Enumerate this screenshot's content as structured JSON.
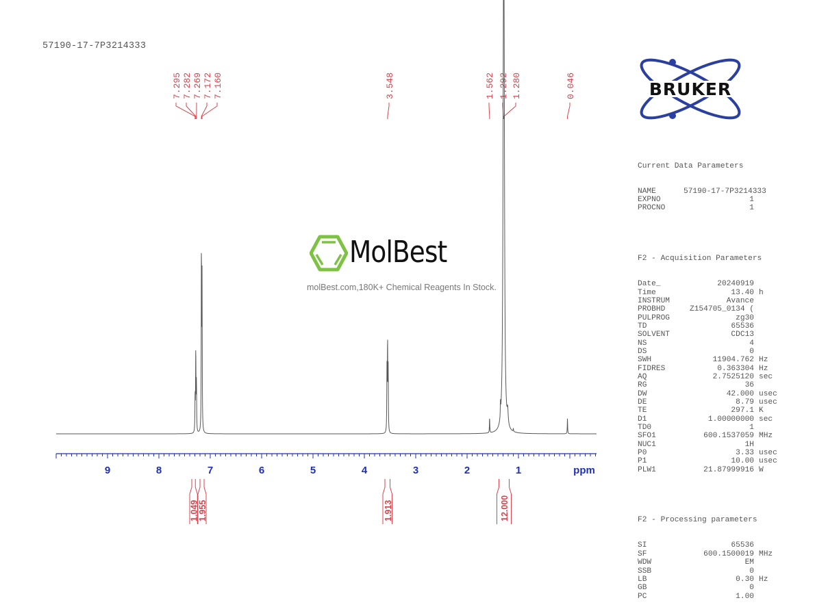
{
  "header": {
    "sample_name": "57190-17-7P3214333"
  },
  "logo": {
    "brand": "BRUKER",
    "brand_color": "#2b3f9e"
  },
  "watermark": {
    "name": "MolBest",
    "tagline": "molBest.com,180K+ Chemical Reagents In Stock.",
    "icon": "benzene-ring-icon",
    "icon_color": "#7dc242"
  },
  "parameters": {
    "current": {
      "title": "Current Data Parameters",
      "rows": [
        {
          "key": "NAME",
          "value": "57190-17-7P3214333",
          "unit": ""
        },
        {
          "key": "EXPNO",
          "value": "1",
          "unit": ""
        },
        {
          "key": "PROCNO",
          "value": "1",
          "unit": ""
        }
      ]
    },
    "acquisition": {
      "title": "F2 - Acquisition Parameters",
      "rows": [
        {
          "key": "Date_",
          "value": "20240919",
          "unit": ""
        },
        {
          "key": "Time",
          "value": "13.40",
          "unit": "h"
        },
        {
          "key": "INSTRUM",
          "value": "Avance",
          "unit": ""
        },
        {
          "key": "PROBHD",
          "value": "Z154705_0134 (",
          "unit": ""
        },
        {
          "key": "PULPROG",
          "value": "zg30",
          "unit": ""
        },
        {
          "key": "TD",
          "value": "65536",
          "unit": ""
        },
        {
          "key": "SOLVENT",
          "value": "CDC13",
          "unit": ""
        },
        {
          "key": "NS",
          "value": "4",
          "unit": ""
        },
        {
          "key": "DS",
          "value": "0",
          "unit": ""
        },
        {
          "key": "SWH",
          "value": "11904.762",
          "unit": "Hz"
        },
        {
          "key": "FIDRES",
          "value": "0.363304",
          "unit": "Hz"
        },
        {
          "key": "AQ",
          "value": "2.7525120",
          "unit": "sec"
        },
        {
          "key": "RG",
          "value": "36",
          "unit": ""
        },
        {
          "key": "DW",
          "value": "42.000",
          "unit": "usec"
        },
        {
          "key": "DE",
          "value": "8.79",
          "unit": "usec"
        },
        {
          "key": "TE",
          "value": "297.1",
          "unit": "K"
        },
        {
          "key": "D1",
          "value": "1.00000000",
          "unit": "sec"
        },
        {
          "key": "TD0",
          "value": "1",
          "unit": ""
        },
        {
          "key": "SFO1",
          "value": "600.1537059",
          "unit": "MHz"
        },
        {
          "key": "NUC1",
          "value": "1H",
          "unit": ""
        },
        {
          "key": "P0",
          "value": "3.33",
          "unit": "usec"
        },
        {
          "key": "P1",
          "value": "10.00",
          "unit": "usec"
        },
        {
          "key": "PLW1",
          "value": "21.87999916",
          "unit": "W"
        }
      ]
    },
    "processing": {
      "title": "F2 - Processing parameters",
      "rows": [
        {
          "key": "SI",
          "value": "65536",
          "unit": ""
        },
        {
          "key": "SF",
          "value": "600.1500019",
          "unit": "MHz"
        },
        {
          "key": "WDW",
          "value": "EM",
          "unit": ""
        },
        {
          "key": "SSB",
          "value": "0",
          "unit": ""
        },
        {
          "key": "LB",
          "value": "0.30",
          "unit": "Hz"
        },
        {
          "key": "GB",
          "value": "0",
          "unit": ""
        },
        {
          "key": "PC",
          "value": "1.00",
          "unit": ""
        }
      ]
    }
  },
  "colors": {
    "peak_label": "#d9434b",
    "axis": "#1f2fb8",
    "spectrum": "#555555",
    "integral": "#d9434b"
  },
  "chart_data": {
    "type": "line",
    "title": "57190-17-7P3214333",
    "xlabel": "ppm",
    "ylabel": "",
    "xlim": [
      10.0,
      -0.52
    ],
    "x_reversed": true,
    "grid": false,
    "x_ticks": [
      9,
      8,
      7,
      6,
      5,
      4,
      3,
      2,
      1
    ],
    "x_tick_labels": [
      "9",
      "8",
      "7",
      "6",
      "5",
      "4",
      "3",
      "2",
      "1"
    ],
    "axis_unit_label": "ppm",
    "peak_labels": [
      "7.295",
      "7.282",
      "7.269",
      "7.172",
      "7.160",
      "3.548",
      "1.562",
      "1.292",
      "1.280",
      "0.046"
    ],
    "peak_label_groups": [
      {
        "labels": [
          "7.295",
          "7.282",
          "7.269",
          "7.172",
          "7.160"
        ]
      },
      {
        "labels": [
          "3.548"
        ]
      },
      {
        "labels": [
          "1.562",
          "1.292",
          "1.280"
        ]
      },
      {
        "labels": [
          "0.046"
        ]
      }
    ],
    "peaks": [
      {
        "ppm": 7.295,
        "height": 0.12
      },
      {
        "ppm": 7.282,
        "height": 0.27
      },
      {
        "ppm": 7.269,
        "height": 0.16
      },
      {
        "ppm": 7.172,
        "height": 0.6
      },
      {
        "ppm": 7.16,
        "height": 0.48
      },
      {
        "ppm": 3.56,
        "height": 0.2
      },
      {
        "ppm": 3.548,
        "height": 0.29
      },
      {
        "ppm": 3.536,
        "height": 0.2
      },
      {
        "ppm": 1.562,
        "height": 0.05
      },
      {
        "ppm": 1.292,
        "height": 0.98
      },
      {
        "ppm": 1.28,
        "height": 0.9
      },
      {
        "ppm": 1.35,
        "height": 0.045
      },
      {
        "ppm": 1.21,
        "height": 0.045
      },
      {
        "ppm": 1.1,
        "height": 0.01
      },
      {
        "ppm": 0.046,
        "height": 0.05
      }
    ],
    "integrals": [
      {
        "from": 7.4,
        "to": 7.25,
        "value": "1.049"
      },
      {
        "from": 7.24,
        "to": 7.08,
        "value": "1.955"
      },
      {
        "from": 3.64,
        "to": 3.46,
        "value": "1.913"
      },
      {
        "from": 1.42,
        "to": 1.14,
        "value": "12.000"
      }
    ]
  }
}
